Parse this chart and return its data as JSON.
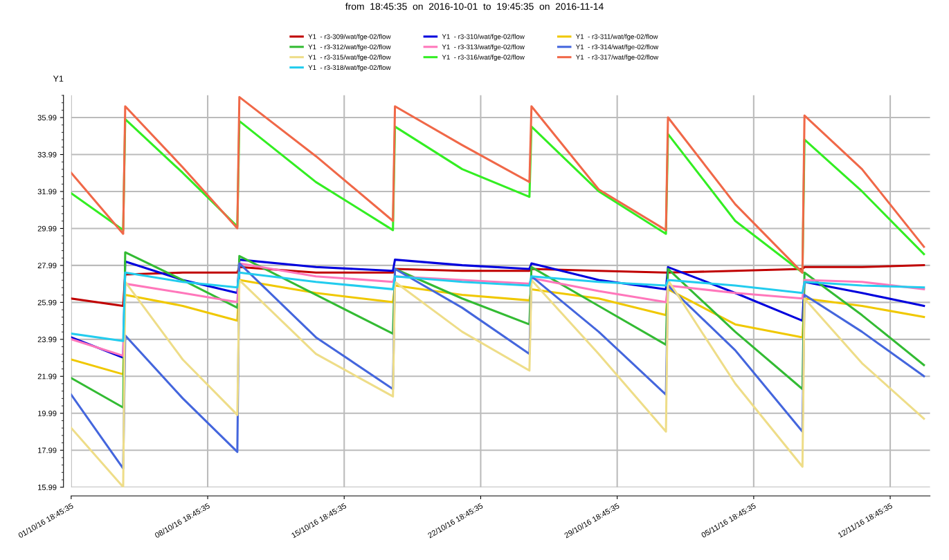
{
  "chart_data": {
    "type": "line",
    "title": "from  18:45:35  on  2016-10-01  to  19:45:35  on  2016-11-14",
    "ylabel": "Y1",
    "x": [
      "2016-10-01T18:45",
      "2016-10-04T10:45",
      "2016-10-04T13:15",
      "2016-10-07T12:00",
      "2016-10-10T07:15",
      "2016-10-10T09:45",
      "2016-10-14T08:00",
      "2016-10-18T06:45",
      "2016-10-18T09:15",
      "2016-10-21T20:00",
      "2016-10-25T06:45",
      "2016-10-25T09:15",
      "2016-10-28T20:00",
      "2016-11-01T06:45",
      "2016-11-01T09:15",
      "2016-11-04T20:00",
      "2016-11-08T06:45",
      "2016-11-08T09:15",
      "2016-11-11T08:00",
      "2016-11-14T12:15"
    ],
    "series": [
      {
        "name": "Y1  - r3-309/wat/fge-02/flow",
        "color": "#c00000",
        "values": [
          26.2,
          25.8,
          27.5,
          27.6,
          27.6,
          27.9,
          27.6,
          27.6,
          27.8,
          27.7,
          27.7,
          27.8,
          27.7,
          27.6,
          27.6,
          27.7,
          27.8,
          27.9,
          27.9,
          28.0
        ]
      },
      {
        "name": "Y1  - r3-310/wat/fge-02/flow",
        "color": "#0000dd",
        "values": [
          24.1,
          23.0,
          28.2,
          27.2,
          26.5,
          28.3,
          27.9,
          27.7,
          28.3,
          28.0,
          27.8,
          28.1,
          27.2,
          26.7,
          27.9,
          26.5,
          25.0,
          27.1,
          26.5,
          25.8
        ]
      },
      {
        "name": "Y1  - r3-311/wat/fge-02/flow",
        "color": "#f0c800",
        "values": [
          22.9,
          22.1,
          26.4,
          25.8,
          25.0,
          27.2,
          26.5,
          26.0,
          26.9,
          26.4,
          26.1,
          26.7,
          26.2,
          25.3,
          26.7,
          24.8,
          24.1,
          26.2,
          25.8,
          25.2
        ]
      },
      {
        "name": "Y1  - r3-312/wat/fge-02/flow",
        "color": "#33bb33",
        "values": [
          21.9,
          20.3,
          28.7,
          27.2,
          25.7,
          28.5,
          26.4,
          24.3,
          27.8,
          26.2,
          24.8,
          27.9,
          25.8,
          23.7,
          27.8,
          24.4,
          21.3,
          27.6,
          25.3,
          22.6
        ]
      },
      {
        "name": "Y1  - r3-313/wat/fge-02/flow",
        "color": "#ff77bb",
        "values": [
          24.0,
          23.1,
          27.0,
          26.5,
          26.0,
          28.1,
          27.4,
          27.1,
          27.4,
          27.2,
          27.0,
          27.3,
          26.6,
          26.0,
          26.9,
          26.5,
          26.2,
          27.2,
          27.1,
          26.7
        ]
      },
      {
        "name": "Y1  - r3-314/wat/fge-02/flow",
        "color": "#4466dd",
        "values": [
          21.0,
          17.0,
          24.2,
          20.8,
          17.9,
          28.1,
          24.1,
          21.3,
          27.8,
          25.7,
          23.2,
          27.4,
          24.4,
          21.0,
          26.9,
          23.4,
          19.0,
          26.4,
          24.4,
          22.0
        ]
      },
      {
        "name": "Y1  - r3-315/wat/fge-02/flow",
        "color": "#eedd88",
        "values": [
          19.2,
          16.0,
          27.1,
          22.9,
          19.9,
          27.2,
          23.2,
          20.9,
          27.1,
          24.4,
          22.3,
          27.2,
          23.2,
          19.0,
          27.2,
          21.6,
          17.1,
          26.2,
          22.7,
          19.7
        ]
      },
      {
        "name": "Y1  - r3-316/wat/fge-02/flow",
        "color": "#33ee22",
        "values": [
          31.9,
          29.9,
          35.9,
          33.0,
          30.1,
          35.8,
          32.5,
          29.9,
          35.5,
          33.2,
          31.7,
          35.5,
          32.0,
          29.7,
          35.1,
          30.4,
          27.6,
          34.8,
          32.0,
          28.6
        ]
      },
      {
        "name": "Y1  - r3-317/wat/fge-02/flow",
        "color": "#f06848",
        "values": [
          33.0,
          29.7,
          36.6,
          33.3,
          30.0,
          37.1,
          33.9,
          30.4,
          36.6,
          34.5,
          32.5,
          36.6,
          32.1,
          29.9,
          36.0,
          31.3,
          27.6,
          36.1,
          33.2,
          29.0
        ]
      },
      {
        "name": "Y1  - r3-318/wat/fge-02/flow",
        "color": "#22ccee",
        "values": [
          24.3,
          23.9,
          27.6,
          27.1,
          26.8,
          27.6,
          27.1,
          26.7,
          27.4,
          27.1,
          26.9,
          27.4,
          27.1,
          26.9,
          27.2,
          26.9,
          26.5,
          27.1,
          26.9,
          26.8
        ]
      }
    ],
    "xlim": [
      "2016-10-01T18:45",
      "2016-11-14T19:45"
    ],
    "xticks": [
      {
        "value": "2016-10-01T18:45",
        "label": "01/10/16 18:45:35"
      },
      {
        "value": "2016-10-08T18:45",
        "label": "08/10/16 18:45:35"
      },
      {
        "value": "2016-10-15T18:45",
        "label": "15/10/16 18:45:35"
      },
      {
        "value": "2016-10-22T18:45",
        "label": "22/10/16 18:45:35"
      },
      {
        "value": "2016-10-29T18:45",
        "label": "29/10/16 18:45:35"
      },
      {
        "value": "2016-11-05T18:45",
        "label": "05/11/16 18:45:35"
      },
      {
        "value": "2016-11-12T18:45",
        "label": "12/11/16 18:45:35"
      }
    ],
    "ylim": [
      15.99,
      37.2
    ],
    "yticks": [
      {
        "value": 15.99,
        "label": "15.99"
      },
      {
        "value": 17.99,
        "label": "17.99"
      },
      {
        "value": 19.99,
        "label": "19.99"
      },
      {
        "value": 21.99,
        "label": "21.99"
      },
      {
        "value": 23.99,
        "label": "23.99"
      },
      {
        "value": 25.99,
        "label": "25.99"
      },
      {
        "value": 27.99,
        "label": "27.99"
      },
      {
        "value": 29.99,
        "label": "29.99"
      },
      {
        "value": 31.99,
        "label": "31.99"
      },
      {
        "value": 33.99,
        "label": "33.99"
      },
      {
        "value": 35.99,
        "label": "35.99"
      }
    ],
    "grid": true,
    "legend": "top",
    "marker": "none",
    "line_style": "solid"
  }
}
